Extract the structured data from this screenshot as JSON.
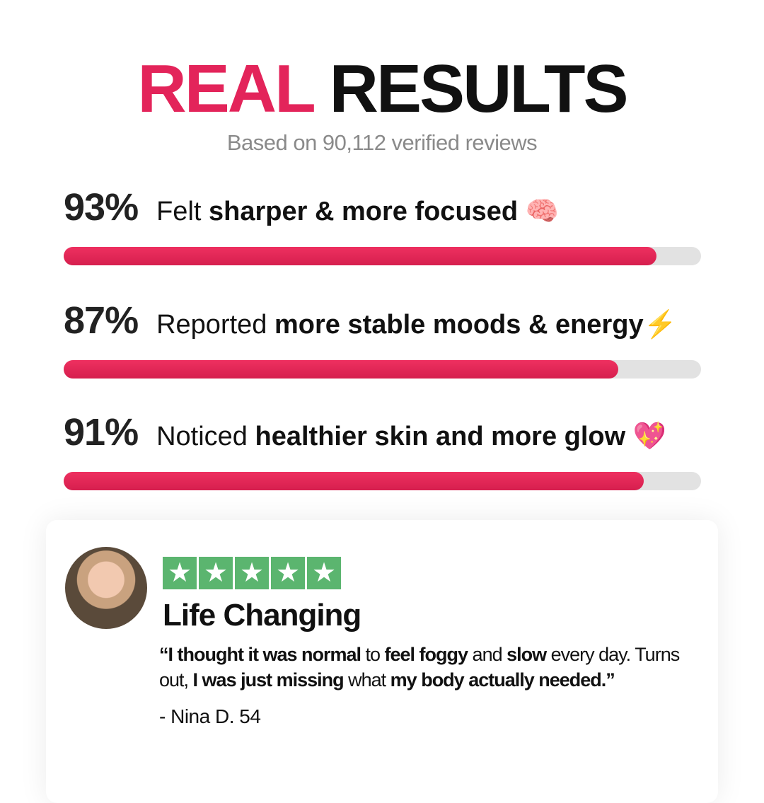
{
  "header": {
    "title_accent": "REAL",
    "title_rest": "RESULTS",
    "subtitle": "Based on 90,112 verified reviews"
  },
  "colors": {
    "accent": "#e3245a",
    "track": "#e2e2e2",
    "star_bg": "#5bb56f"
  },
  "stats": [
    {
      "percent": "93%",
      "value": 93,
      "prefix": "Felt ",
      "bold": "sharper & more focused",
      "emoji": " 🧠"
    },
    {
      "percent": "87%",
      "value": 87,
      "prefix": "Reported ",
      "bold": "more stable moods & energy",
      "emoji": "⚡"
    },
    {
      "percent": "91%",
      "value": 91,
      "prefix": "Noticed ",
      "bold": "healthier skin and more glow",
      "emoji": " 💖"
    }
  ],
  "review": {
    "rating": 5,
    "star_icon": "star-icon",
    "title": "Life Changing",
    "quote": [
      {
        "t": "“I thought it was normal",
        "b": true
      },
      {
        "t": " to ",
        "b": false
      },
      {
        "t": "feel foggy",
        "b": true
      },
      {
        "t": " and ",
        "b": false
      },
      {
        "t": "slow",
        "b": true
      },
      {
        "t": " every day. Turns out, ",
        "b": false
      },
      {
        "t": "I was just missing",
        "b": true
      },
      {
        "t": " what ",
        "b": false
      },
      {
        "t": "my body actually needed.”",
        "b": true
      }
    ],
    "author": "- Nina D. 54"
  }
}
